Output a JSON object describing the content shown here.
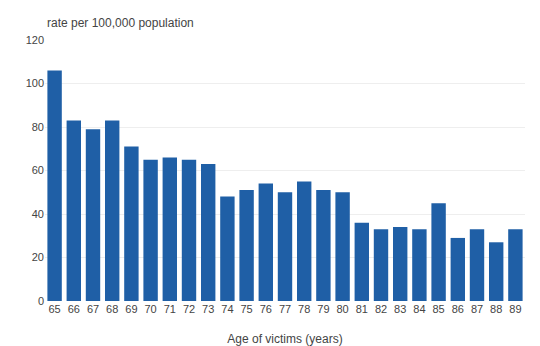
{
  "chart_data": {
    "type": "bar",
    "ylabel": "rate per 100,000 population",
    "xlabel": "Age of victims (years)",
    "categories": [
      "65",
      "66",
      "67",
      "68",
      "69",
      "70",
      "71",
      "72",
      "73",
      "74",
      "75",
      "76",
      "77",
      "78",
      "79",
      "80",
      "81",
      "82",
      "83",
      "84",
      "85",
      "86",
      "87",
      "88",
      "89"
    ],
    "values": [
      106,
      83,
      79,
      83,
      71,
      65,
      66,
      65,
      63,
      48,
      51,
      54,
      50,
      55,
      51,
      50,
      36,
      33,
      34,
      33,
      45,
      29,
      33,
      27,
      33
    ],
    "color": "#1F5FA6",
    "ylim": [
      0,
      120
    ],
    "yticks": [
      0,
      20,
      40,
      60,
      80,
      100,
      120
    ],
    "grid": true
  }
}
